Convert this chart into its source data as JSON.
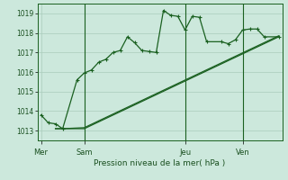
{
  "background_color": "#cce8dc",
  "grid_color": "#aaccbb",
  "line_color": "#1a6020",
  "title": "Pression niveau de la mer( hPa )",
  "x_ticks_labels": [
    "Mer",
    "Sam",
    "Jeu",
    "Ven"
  ],
  "x_ticks_pos": [
    0,
    6,
    20,
    28
  ],
  "ylim": [
    1012.5,
    1019.5
  ],
  "yticks": [
    1013,
    1014,
    1015,
    1016,
    1017,
    1018,
    1019
  ],
  "series1_x": [
    0,
    1,
    2,
    3,
    5,
    6,
    7,
    8,
    9,
    10,
    11,
    12,
    13,
    14,
    15,
    16,
    17,
    18,
    19,
    20,
    21,
    22,
    23,
    25,
    26,
    27,
    28,
    29,
    30,
    31,
    33
  ],
  "series1": [
    1013.8,
    1013.4,
    1013.35,
    1013.1,
    1015.6,
    1015.95,
    1016.1,
    1016.5,
    1016.65,
    1017.0,
    1017.1,
    1017.8,
    1017.5,
    1017.1,
    1017.05,
    1017.0,
    1019.15,
    1018.9,
    1018.85,
    1018.15,
    1018.85,
    1018.8,
    1017.55,
    1017.55,
    1017.45,
    1017.65,
    1018.15,
    1018.2,
    1018.2,
    1017.8,
    1017.8
  ],
  "series2_x": [
    2,
    3,
    6,
    33
  ],
  "series2": [
    1013.1,
    1013.1,
    1013.1,
    1017.8
  ],
  "series3_x": [
    2,
    3,
    6,
    33
  ],
  "series3": [
    1013.1,
    1013.1,
    1013.15,
    1017.85
  ],
  "n_points": 34,
  "vlines_x": [
    6,
    20,
    28
  ],
  "xlabel_color": "#1a5020"
}
